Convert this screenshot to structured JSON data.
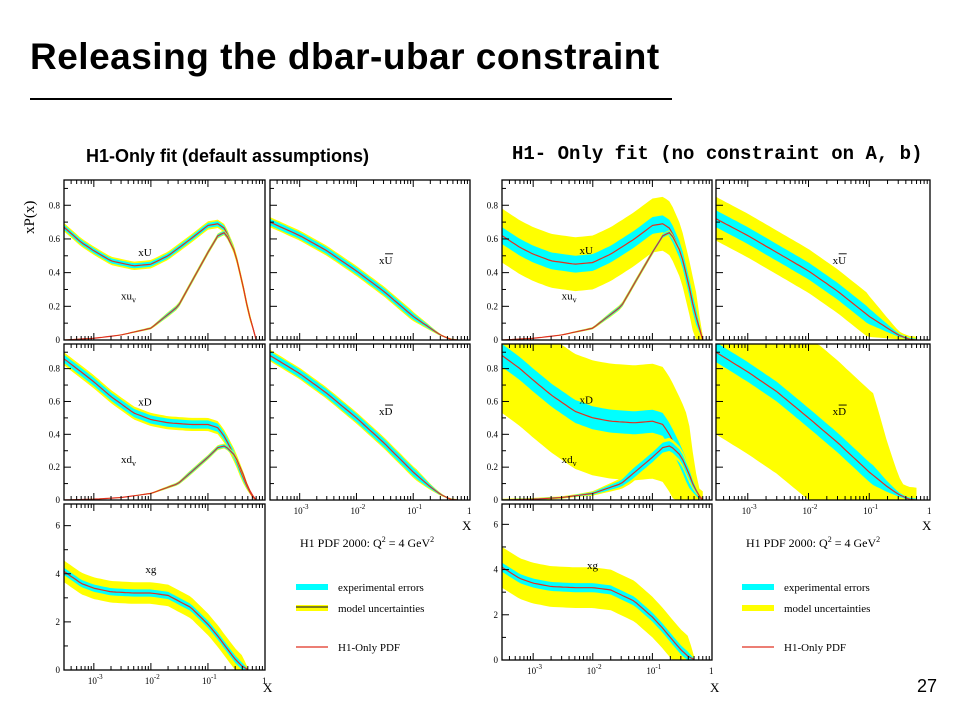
{
  "slide": {
    "title": "Releasing the dbar-ubar constraint",
    "page_number": "27"
  },
  "colors": {
    "band_model": "#ffff00",
    "band_exp": "#00ffff",
    "central": "#e03020",
    "frame": "#000000"
  },
  "chart_data": [
    {
      "type": "line",
      "title": "H1-Only fit (default assumptions)",
      "ylabel": "xP(x)",
      "xlabel": "X",
      "xscale": "log",
      "xlim": [
        0.0003,
        1
      ],
      "x_tick_labels": [
        "10-3",
        "10-2",
        "10-1",
        "1"
      ],
      "info_text": "H1 PDF 2000:  Q2 = 4 GeV2",
      "legend": {
        "placement": "bottom-right",
        "entries": [
          "experimental errors",
          "model uncertainties",
          "H1-Only PDF"
        ]
      },
      "panels": [
        {
          "ylim": [
            0,
            0.95
          ],
          "y_ticks": [
            "0",
            "0.2",
            "0.4",
            "0.6",
            "0.8"
          ],
          "series": [
            {
              "name": "xU",
              "x": [
                0.0003,
                0.0006,
                0.001,
                0.002,
                0.005,
                0.01,
                0.02,
                0.05,
                0.1,
                0.15,
                0.2,
                0.3,
                0.4,
                0.5,
                0.6,
                0.7
              ],
              "y": [
                0.67,
                0.58,
                0.53,
                0.47,
                0.44,
                0.45,
                0.5,
                0.6,
                0.68,
                0.69,
                0.66,
                0.52,
                0.34,
                0.18,
                0.08,
                0.02
              ],
              "exp": 0.015,
              "model": 0.025
            },
            {
              "name": "xuv",
              "x": [
                0.0003,
                0.001,
                0.003,
                0.01,
                0.03,
                0.1,
                0.15,
                0.2,
                0.3,
                0.4,
                0.5,
                0.6,
                0.7
              ],
              "y": [
                0.0,
                0.01,
                0.03,
                0.07,
                0.2,
                0.52,
                0.62,
                0.64,
                0.52,
                0.34,
                0.18,
                0.08,
                0.02
              ],
              "exp": 0.01,
              "model": 0.015
            }
          ]
        },
        {
          "ylim": [
            0,
            0.95
          ],
          "y_ticks": [],
          "series": [
            {
              "name": "xU-bar",
              "x": [
                0.0003,
                0.001,
                0.003,
                0.01,
                0.03,
                0.1,
                0.2,
                0.3,
                0.45,
                0.6
              ],
              "y": [
                0.7,
                0.62,
                0.53,
                0.41,
                0.29,
                0.14,
                0.07,
                0.03,
                0.005,
                0.0
              ],
              "exp": 0.02,
              "model": 0.03
            }
          ]
        },
        {
          "ylim": [
            0,
            0.95
          ],
          "y_ticks": [
            "0",
            "0.2",
            "0.4",
            "0.6",
            "0.8"
          ],
          "series": [
            {
              "name": "xD",
              "x": [
                0.0003,
                0.0006,
                0.001,
                0.002,
                0.005,
                0.01,
                0.02,
                0.05,
                0.1,
                0.15,
                0.2,
                0.3,
                0.4,
                0.5,
                0.6,
                0.7
              ],
              "y": [
                0.86,
                0.78,
                0.72,
                0.63,
                0.53,
                0.49,
                0.47,
                0.46,
                0.46,
                0.44,
                0.38,
                0.26,
                0.15,
                0.07,
                0.02,
                0.0
              ],
              "exp": 0.025,
              "model": 0.04
            },
            {
              "name": "xdv",
              "x": [
                0.0003,
                0.001,
                0.003,
                0.01,
                0.03,
                0.1,
                0.15,
                0.2,
                0.3,
                0.4,
                0.5,
                0.6,
                0.7
              ],
              "y": [
                0.0,
                0.005,
                0.015,
                0.04,
                0.1,
                0.26,
                0.32,
                0.33,
                0.27,
                0.17,
                0.08,
                0.03,
                0.0
              ],
              "exp": 0.01,
              "model": 0.015
            }
          ]
        },
        {
          "ylim": [
            0,
            0.95
          ],
          "y_ticks": [],
          "series": [
            {
              "name": "xD-bar",
              "x": [
                0.0003,
                0.001,
                0.003,
                0.01,
                0.03,
                0.1,
                0.2,
                0.3,
                0.45,
                0.6
              ],
              "y": [
                0.88,
                0.77,
                0.65,
                0.5,
                0.35,
                0.17,
                0.08,
                0.035,
                0.005,
                0.0
              ],
              "exp": 0.025,
              "model": 0.035
            }
          ]
        },
        {
          "ylim": [
            0,
            6.9
          ],
          "y_ticks": [
            "0",
            "2",
            "4",
            "6"
          ],
          "series": [
            {
              "name": "xg",
              "x": [
                0.0003,
                0.0006,
                0.001,
                0.002,
                0.005,
                0.01,
                0.02,
                0.05,
                0.1,
                0.15,
                0.2,
                0.3,
                0.4,
                0.5
              ],
              "y": [
                4.1,
                3.6,
                3.4,
                3.25,
                3.2,
                3.2,
                3.1,
                2.6,
                1.9,
                1.4,
                1.0,
                0.45,
                0.15,
                0.02
              ],
              "exp": 0.15,
              "model": 0.45
            }
          ]
        }
      ]
    },
    {
      "type": "line",
      "title": "H1- Only fit (no constraint  on A, b)",
      "ylabel": "",
      "xlabel": "X",
      "xscale": "log",
      "xlim": [
        0.0003,
        1
      ],
      "x_tick_labels": [
        "10-3",
        "10-2",
        "10-1",
        "1"
      ],
      "info_text": "H1 PDF 2000:  Q2 = 4 GeV2",
      "legend": {
        "placement": "bottom-right",
        "entries": [
          "experimental errors",
          "model uncertainties",
          "H1-Only PDF"
        ]
      },
      "panels": [
        {
          "ylim": [
            0,
            0.95
          ],
          "y_ticks": [
            "0",
            "0.2",
            "0.4",
            "0.6",
            "0.8"
          ],
          "series": [
            {
              "name": "xU",
              "x": [
                0.0003,
                0.0006,
                0.001,
                0.002,
                0.005,
                0.01,
                0.02,
                0.05,
                0.1,
                0.15,
                0.2,
                0.3,
                0.4,
                0.5,
                0.6,
                0.7
              ],
              "y": [
                0.62,
                0.55,
                0.51,
                0.47,
                0.45,
                0.46,
                0.51,
                0.6,
                0.68,
                0.69,
                0.66,
                0.52,
                0.34,
                0.18,
                0.08,
                0.02
              ],
              "exp": 0.05,
              "model": 0.16
            },
            {
              "name": "xuv",
              "x": [
                0.0003,
                0.001,
                0.003,
                0.01,
                0.03,
                0.1,
                0.15,
                0.2,
                0.3,
                0.4,
                0.5,
                0.6,
                0.7
              ],
              "y": [
                0.0,
                0.01,
                0.03,
                0.07,
                0.2,
                0.52,
                0.62,
                0.64,
                0.52,
                0.34,
                0.18,
                0.08,
                0.02
              ],
              "exp": 0.01,
              "model": 0.015
            }
          ]
        },
        {
          "ylim": [
            0,
            0.95
          ],
          "y_ticks": [],
          "series": [
            {
              "name": "xU-bar",
              "x": [
                0.0003,
                0.001,
                0.003,
                0.01,
                0.03,
                0.1,
                0.2,
                0.3,
                0.45,
                0.6
              ],
              "y": [
                0.72,
                0.62,
                0.52,
                0.41,
                0.29,
                0.14,
                0.07,
                0.03,
                0.005,
                0.0
              ],
              "exp": 0.05,
              "model": 0.13
            }
          ]
        },
        {
          "ylim": [
            0,
            0.95
          ],
          "y_ticks": [
            "0",
            "0.2",
            "0.4",
            "0.6",
            "0.8"
          ],
          "series": [
            {
              "name": "xD",
              "x": [
                0.0003,
                0.0006,
                0.001,
                0.002,
                0.005,
                0.01,
                0.02,
                0.05,
                0.1,
                0.15,
                0.2,
                0.3,
                0.4,
                0.5,
                0.6,
                0.7
              ],
              "y": [
                0.88,
                0.8,
                0.73,
                0.64,
                0.54,
                0.5,
                0.48,
                0.47,
                0.48,
                0.46,
                0.39,
                0.26,
                0.15,
                0.07,
                0.02,
                0.0
              ],
              "exp": 0.07,
              "model": 0.35
            },
            {
              "name": "xdv",
              "x": [
                0.0003,
                0.001,
                0.003,
                0.01,
                0.03,
                0.1,
                0.15,
                0.2,
                0.3,
                0.4,
                0.5,
                0.6,
                0.7
              ],
              "y": [
                0.0,
                0.005,
                0.015,
                0.04,
                0.1,
                0.26,
                0.32,
                0.33,
                0.27,
                0.17,
                0.08,
                0.03,
                0.0
              ],
              "exp": 0.03,
              "model": 0.05
            }
          ]
        },
        {
          "ylim": [
            0,
            0.95
          ],
          "y_ticks": [],
          "series": [
            {
              "name": "xD-bar",
              "x": [
                0.0003,
                0.001,
                0.003,
                0.01,
                0.03,
                0.1,
                0.2,
                0.3,
                0.45,
                0.6
              ],
              "y": [
                0.9,
                0.78,
                0.66,
                0.5,
                0.35,
                0.17,
                0.08,
                0.035,
                0.005,
                0.0
              ],
              "exp": 0.06,
              "model": 0.5
            }
          ]
        },
        {
          "ylim": [
            0,
            6.9
          ],
          "y_ticks": [
            "0",
            "2",
            "4",
            "6"
          ],
          "series": [
            {
              "name": "xg",
              "x": [
                0.0003,
                0.0006,
                0.001,
                0.002,
                0.005,
                0.01,
                0.02,
                0.05,
                0.1,
                0.15,
                0.2,
                0.3,
                0.4,
                0.5
              ],
              "y": [
                4.1,
                3.6,
                3.4,
                3.25,
                3.2,
                3.2,
                3.1,
                2.6,
                1.9,
                1.4,
                1.0,
                0.45,
                0.15,
                0.02
              ],
              "exp": 0.2,
              "model": 0.9
            }
          ]
        }
      ]
    }
  ]
}
